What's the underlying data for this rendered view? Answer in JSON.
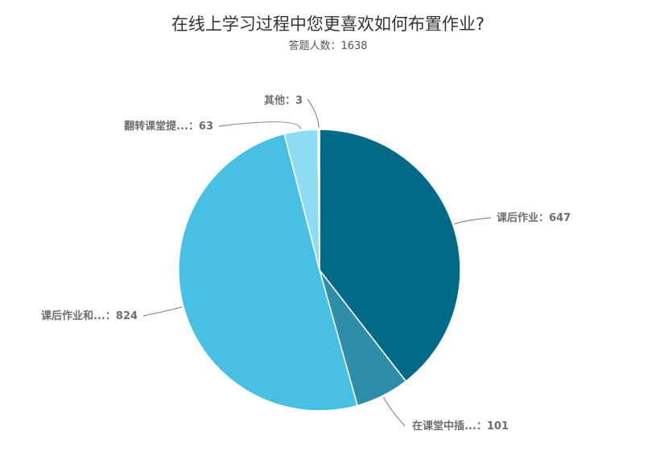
{
  "chart_data": {
    "type": "pie",
    "title": "在线上学习过程中您更喜欢如何布置作业?",
    "subtitle": "答题人数：1638",
    "series": [
      {
        "name": "课后作业",
        "label": "课后作业：647",
        "value": 647,
        "color": "#006a87"
      },
      {
        "name": "在课堂中插...",
        "label": "在课堂中插...：101",
        "value": 101,
        "color": "#2e8da8"
      },
      {
        "name": "课后作业和...",
        "label": "课后作业和...：824",
        "value": 824,
        "color": "#47c0e3"
      },
      {
        "name": "翻转课堂提...",
        "label": "翻转课堂提...：63",
        "value": 63,
        "color": "#8fdcf5"
      },
      {
        "name": "其他",
        "label": "其他：3",
        "value": 3,
        "color": "#c9eefb"
      }
    ],
    "start_angle_deg": 0,
    "direction": "clockwise"
  }
}
